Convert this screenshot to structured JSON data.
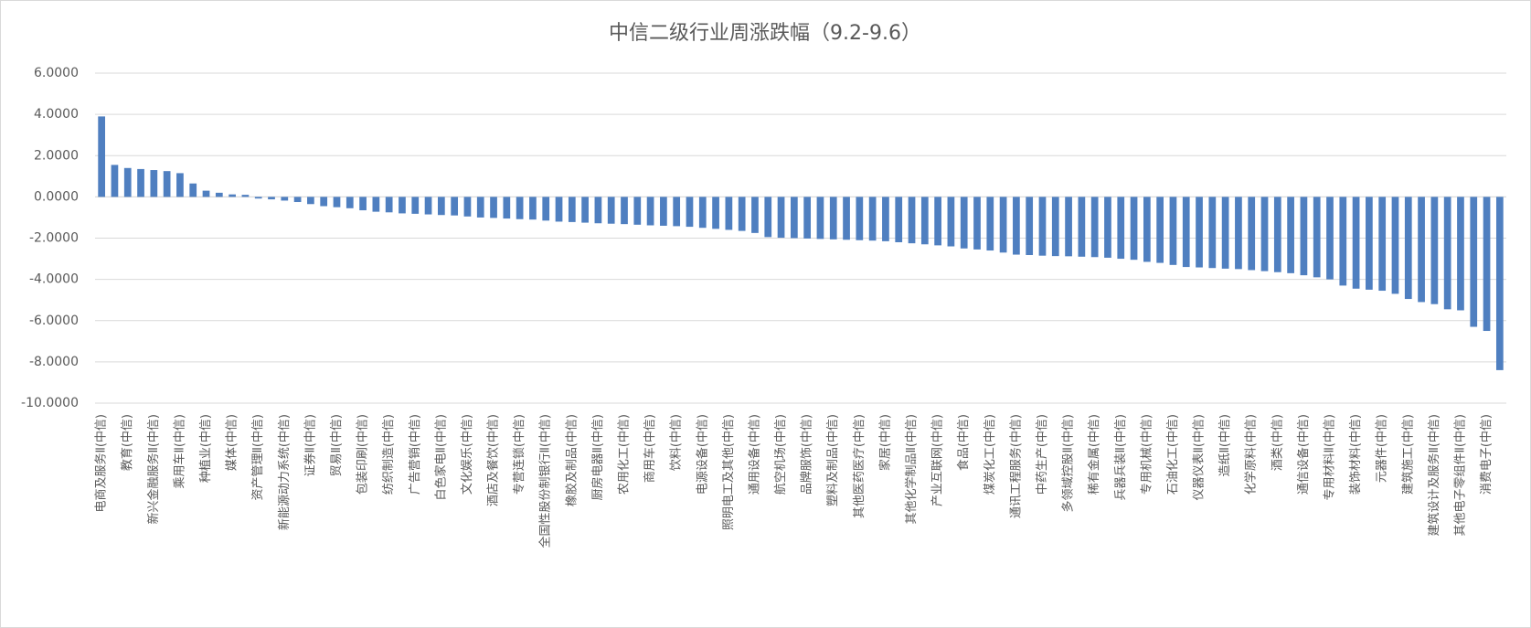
{
  "chart_data": {
    "type": "bar",
    "title": "中信二级行业周涨跌幅（9.2-9.6）",
    "categories": [
      "电商及服务Ⅱ(中信)",
      null,
      "教育(中信)",
      null,
      "新兴金融服务Ⅱ(中信)",
      null,
      "乘用车Ⅱ(中信)",
      null,
      "种植业(中信)",
      null,
      "媒体(中信)",
      null,
      "资产管理Ⅱ(中信)",
      null,
      "新能源动力系统(中信)",
      null,
      "证券Ⅱ(中信)",
      null,
      "贸易Ⅱ(中信)",
      null,
      "包装印刷(中信)",
      null,
      "纺织制造(中信)",
      null,
      "广告营销(中信)",
      null,
      "白色家电Ⅱ(中信)",
      null,
      "文化娱乐(中信)",
      null,
      "酒店及餐饮(中信)",
      null,
      "专营连锁(中信)",
      null,
      "全国性股份制银行Ⅱ(中信)",
      null,
      "橡胶及制品(中信)",
      null,
      "厨房电器Ⅱ(中信)",
      null,
      "农用化工(中信)",
      null,
      "商用车(中信)",
      null,
      "饮料(中信)",
      null,
      "电源设备(中信)",
      null,
      "照明电工及其他(中信)",
      null,
      "通用设备(中信)",
      null,
      "航空机场(中信)",
      null,
      "品牌服饰(中信)",
      null,
      "塑料及制品(中信)",
      null,
      "其他医药医疗(中信)",
      null,
      "家居(中信)",
      null,
      "其他化学制品Ⅱ(中信)",
      null,
      "产业互联网(中信)",
      null,
      "食品(中信)",
      null,
      "煤炭化工(中信)",
      null,
      "通讯工程服务(中信)",
      null,
      "中药生产(中信)",
      null,
      "多领域控股Ⅱ(中信)",
      null,
      "稀有金属(中信)",
      null,
      "兵器兵装Ⅱ(中信)",
      null,
      "专用机械(中信)",
      null,
      "石油化工(中信)",
      null,
      "仪器仪表Ⅱ(中信)",
      null,
      "造纸Ⅱ(中信)",
      null,
      "化学原料(中信)",
      null,
      "酒类(中信)",
      null,
      "通信设备(中信)",
      null,
      "专用材料Ⅱ(中信)",
      null,
      "装饰材料(中信)",
      null,
      "元器件(中信)",
      null,
      "建筑施工(中信)",
      null,
      "建筑设计及服务Ⅱ(中信)",
      null,
      "其他电子零组件Ⅱ(中信)",
      null,
      "消费电子(中信)",
      null
    ],
    "values": [
      3.9,
      1.55,
      1.4,
      1.35,
      1.3,
      1.25,
      1.15,
      0.65,
      0.3,
      0.2,
      0.12,
      0.1,
      -0.08,
      -0.12,
      -0.18,
      -0.25,
      -0.35,
      -0.45,
      -0.5,
      -0.55,
      -0.65,
      -0.72,
      -0.75,
      -0.8,
      -0.82,
      -0.85,
      -0.88,
      -0.9,
      -0.95,
      -1.0,
      -1.02,
      -1.05,
      -1.08,
      -1.1,
      -1.15,
      -1.2,
      -1.22,
      -1.25,
      -1.28,
      -1.3,
      -1.32,
      -1.35,
      -1.38,
      -1.4,
      -1.42,
      -1.45,
      -1.5,
      -1.55,
      -1.6,
      -1.65,
      -1.75,
      -1.95,
      -1.98,
      -2.0,
      -2.02,
      -2.04,
      -2.06,
      -2.08,
      -2.1,
      -2.12,
      -2.15,
      -2.2,
      -2.25,
      -2.3,
      -2.35,
      -2.4,
      -2.5,
      -2.55,
      -2.6,
      -2.7,
      -2.8,
      -2.82,
      -2.85,
      -2.87,
      -2.88,
      -2.9,
      -2.92,
      -2.95,
      -3.0,
      -3.05,
      -3.15,
      -3.2,
      -3.3,
      -3.4,
      -3.42,
      -3.45,
      -3.48,
      -3.5,
      -3.55,
      -3.6,
      -3.65,
      -3.7,
      -3.8,
      -3.9,
      -4.0,
      -4.3,
      -4.45,
      -4.5,
      -4.55,
      -4.7,
      -4.95,
      -5.1,
      -5.2,
      -5.45,
      -5.5,
      -6.3,
      -6.5,
      -8.4
    ],
    "color": "#4f7fc0",
    "ylim": [
      -10,
      6
    ],
    "yticks": [
      {
        "value": -10,
        "label": "-10.0000"
      },
      {
        "value": -8,
        "label": "-8.0000"
      },
      {
        "value": -6,
        "label": "-6.0000"
      },
      {
        "value": -4,
        "label": "-4.0000"
      },
      {
        "value": -2,
        "label": "-2.0000"
      },
      {
        "value": 0,
        "label": "0.0000"
      },
      {
        "value": 2,
        "label": "2.0000"
      },
      {
        "value": 4,
        "label": "4.0000"
      },
      {
        "value": 6,
        "label": "6.0000"
      }
    ],
    "grid": true
  }
}
